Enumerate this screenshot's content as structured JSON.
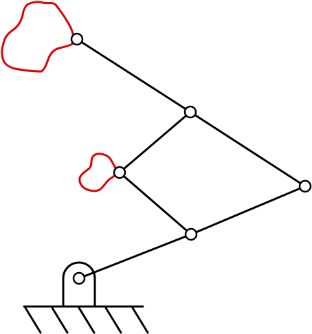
{
  "diagram": {
    "kind": "planar linkage mechanism",
    "colors": {
      "link": "#000000",
      "trace": "#e00000",
      "joint_fill": "#ffffff",
      "background": "#ffffff"
    },
    "joints": [
      "ground-pivot",
      "joint-lower-mid",
      "joint-left-mid",
      "joint-upper-mid",
      "joint-right",
      "joint-top-left"
    ],
    "links": [
      [
        "ground-pivot",
        "joint-lower-mid"
      ],
      [
        "joint-lower-mid",
        "joint-right"
      ],
      [
        "joint-right",
        "joint-upper-mid"
      ],
      [
        "joint-lower-mid",
        "joint-left-mid"
      ],
      [
        "joint-left-mid",
        "joint-upper-mid"
      ],
      [
        "joint-upper-mid",
        "joint-top-left"
      ]
    ],
    "traced_curves": [
      "coupler-curve-large",
      "coupler-curve-small"
    ]
  }
}
